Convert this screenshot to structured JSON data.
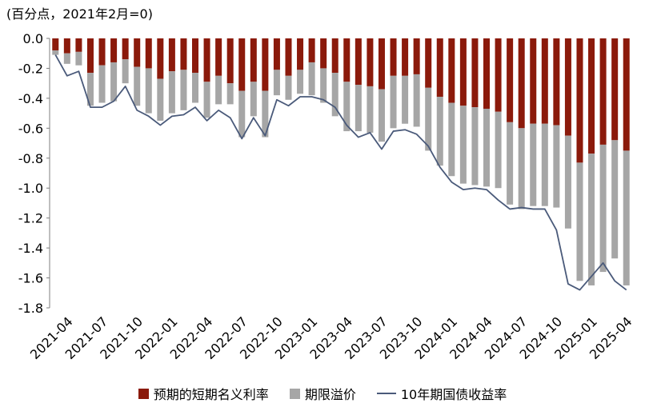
{
  "chart_data": {
    "type": "bar",
    "unit_label": "(百分点，2021年2月=0)",
    "x": [
      "2021-03",
      "2021-04",
      "2021-05",
      "2021-06",
      "2021-07",
      "2021-08",
      "2021-09",
      "2021-10",
      "2021-11",
      "2021-12",
      "2022-01",
      "2022-02",
      "2022-03",
      "2022-04",
      "2022-05",
      "2022-06",
      "2022-07",
      "2022-08",
      "2022-09",
      "2022-10",
      "2022-11",
      "2022-12",
      "2023-01",
      "2023-02",
      "2023-03",
      "2023-04",
      "2023-05",
      "2023-06",
      "2023-07",
      "2023-08",
      "2023-09",
      "2023-10",
      "2023-11",
      "2023-12",
      "2024-01",
      "2024-02",
      "2024-03",
      "2024-04",
      "2024-05",
      "2024-06",
      "2024-07",
      "2024-08",
      "2024-09",
      "2024-10",
      "2024-11",
      "2024-12",
      "2025-01",
      "2025-02",
      "2025-03",
      "2025-04"
    ],
    "tick_labels": [
      "2021-04",
      "2021-07",
      "2021-10",
      "2022-01",
      "2022-04",
      "2022-07",
      "2022-10",
      "2023-01",
      "2023-04",
      "2023-07",
      "2023-10",
      "2024-01",
      "2024-04",
      "2024-07",
      "2024-10",
      "2025-01",
      "2025-04"
    ],
    "y_ticks": [
      "0.0",
      "-0.2",
      "-0.4",
      "-0.6",
      "-0.8",
      "-1.0",
      "-1.2",
      "-1.4",
      "-1.6",
      "-1.8"
    ],
    "ylim": [
      -1.8,
      0
    ],
    "series": [
      {
        "name": "预期的短期名义利率",
        "type": "bar",
        "color": "#8b1a0b",
        "values": [
          -0.08,
          -0.1,
          -0.09,
          -0.23,
          -0.18,
          -0.16,
          -0.14,
          -0.19,
          -0.2,
          -0.27,
          -0.22,
          -0.21,
          -0.23,
          -0.29,
          -0.25,
          -0.3,
          -0.35,
          -0.29,
          -0.35,
          -0.21,
          -0.25,
          -0.21,
          -0.16,
          -0.2,
          -0.23,
          -0.29,
          -0.31,
          -0.32,
          -0.34,
          -0.25,
          -0.25,
          -0.24,
          -0.33,
          -0.39,
          -0.43,
          -0.45,
          -0.46,
          -0.47,
          -0.49,
          -0.56,
          -0.6,
          -0.57,
          -0.57,
          -0.58,
          -0.65,
          -0.83,
          -0.77,
          -0.71,
          -0.68,
          -0.75
        ]
      },
      {
        "name": "期限溢价",
        "type": "bar",
        "color": "#a6a6a6",
        "values": [
          -0.03,
          -0.07,
          -0.09,
          -0.22,
          -0.25,
          -0.26,
          -0.16,
          -0.26,
          -0.3,
          -0.28,
          -0.28,
          -0.27,
          -0.2,
          -0.24,
          -0.19,
          -0.14,
          -0.31,
          -0.23,
          -0.31,
          -0.17,
          -0.16,
          -0.16,
          -0.22,
          -0.23,
          -0.29,
          -0.33,
          -0.31,
          -0.31,
          -0.35,
          -0.35,
          -0.32,
          -0.35,
          -0.42,
          -0.46,
          -0.49,
          -0.52,
          -0.52,
          -0.52,
          -0.51,
          -0.55,
          -0.54,
          -0.55,
          -0.55,
          -0.55,
          -0.62,
          -0.79,
          -0.88,
          -0.85,
          -0.79,
          -0.9
        ]
      },
      {
        "name": "10年期国债收益率",
        "type": "line",
        "color": "#4a5a7a",
        "values": [
          -0.11,
          -0.25,
          -0.22,
          -0.46,
          -0.46,
          -0.42,
          -0.32,
          -0.48,
          -0.52,
          -0.58,
          -0.52,
          -0.51,
          -0.46,
          -0.55,
          -0.48,
          -0.53,
          -0.67,
          -0.53,
          -0.65,
          -0.41,
          -0.45,
          -0.39,
          -0.39,
          -0.41,
          -0.46,
          -0.58,
          -0.66,
          -0.63,
          -0.74,
          -0.62,
          -0.61,
          -0.64,
          -0.72,
          -0.86,
          -0.96,
          -1.01,
          -1.0,
          -1.01,
          -1.08,
          -1.14,
          -1.13,
          -1.14,
          -1.14,
          -1.28,
          -1.64,
          -1.68,
          -1.59,
          -1.5,
          -1.62,
          -1.68
        ]
      }
    ]
  }
}
